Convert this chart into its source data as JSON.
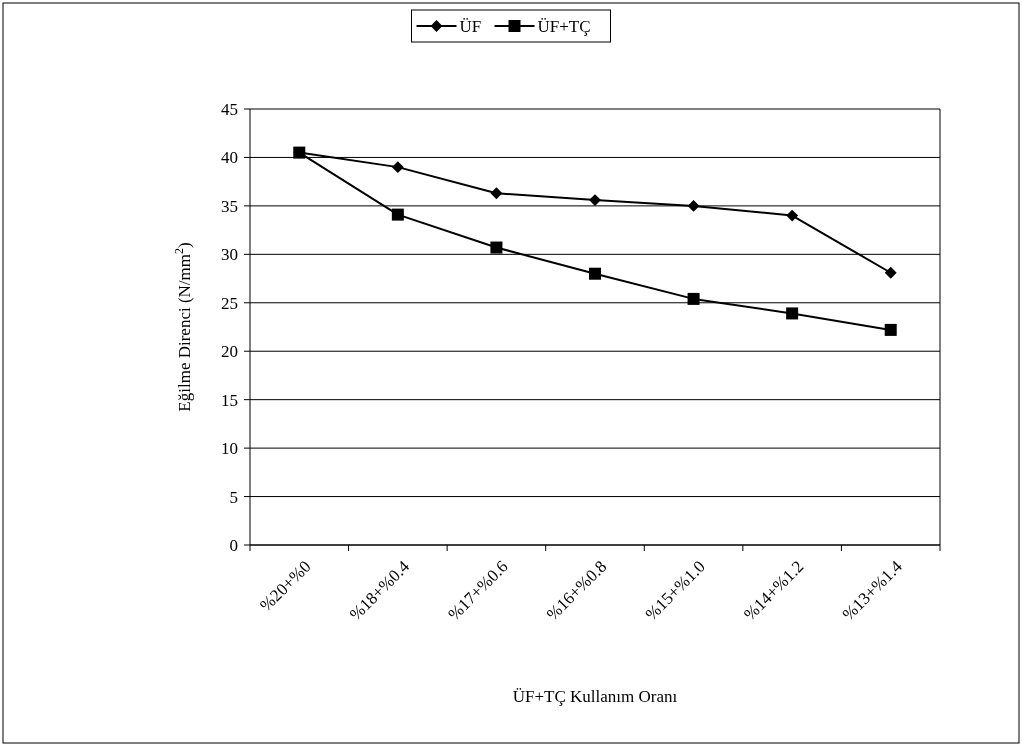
{
  "chart_data": {
    "type": "line",
    "xlabel": "ÜF+TÇ Kullanım Oranı",
    "ylabel": "Eğilme Direnci (N/mm$^{2}$)",
    "categories": [
      "%20+%0",
      "%18+%0.4",
      "%17+%0.6",
      "%16+%0.8",
      "%15+%1.0",
      "%14+%1.2",
      "%13+%1.4"
    ],
    "ylim": [
      0,
      45
    ],
    "yticks": [
      0,
      5,
      10,
      15,
      20,
      25,
      30,
      35,
      40,
      45
    ],
    "grid": "y",
    "legend": "top",
    "line_style": "solid",
    "series": [
      {
        "name": "ÜF",
        "color": "#000000",
        "marker": "diamond",
        "values": [
          40.5,
          39.0,
          36.3,
          35.6,
          35.0,
          34.0,
          28.1
        ]
      },
      {
        "name": "ÜF+TÇ",
        "color": "#000000",
        "marker": "square",
        "values": [
          40.5,
          34.1,
          30.7,
          28.0,
          25.4,
          23.9,
          22.2
        ]
      }
    ]
  }
}
